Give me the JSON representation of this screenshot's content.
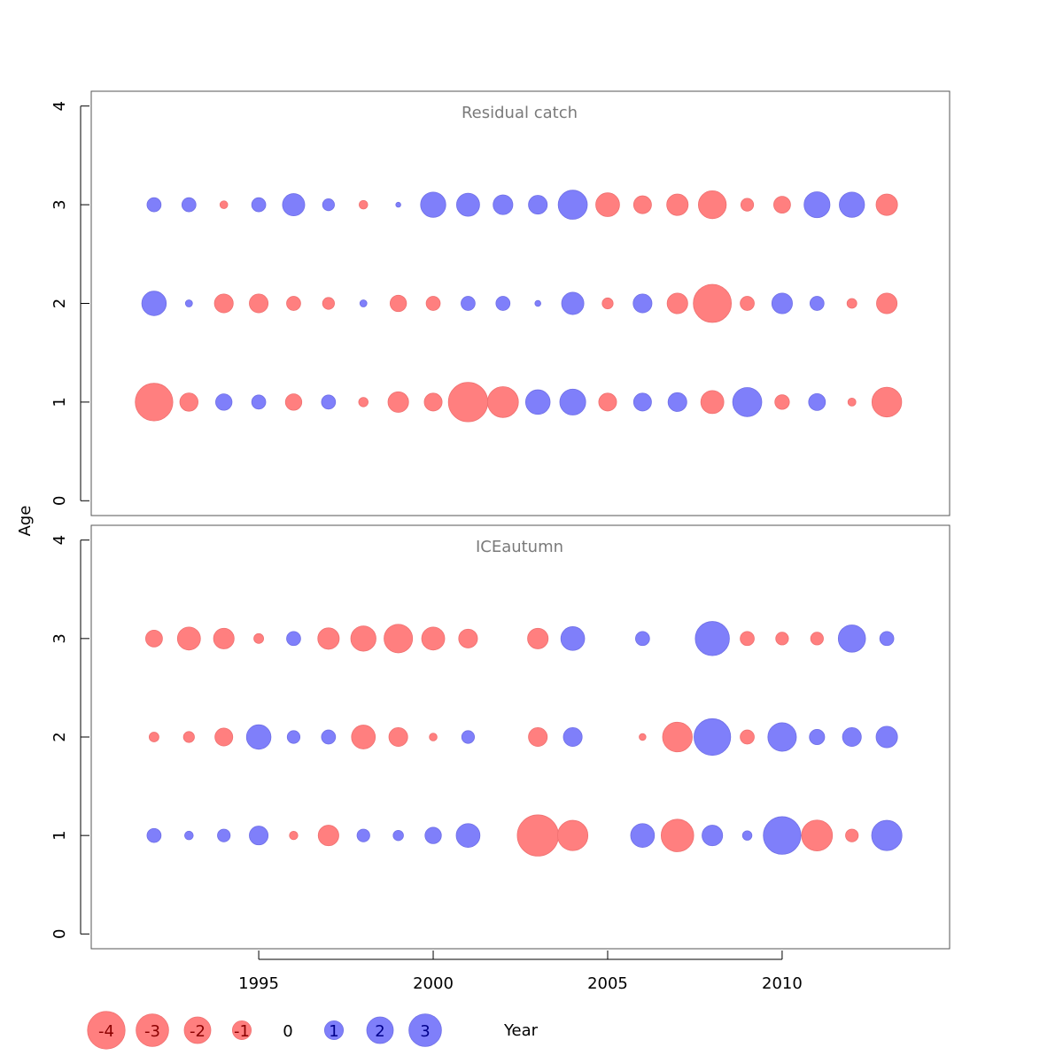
{
  "colors": {
    "positive": "#7f7ffa",
    "negative": "#ff7f7f",
    "panel_title": "#7a7a7a",
    "axis": "#000000"
  },
  "ylabel": "Age",
  "xlabel": "Year",
  "chart_data": [
    {
      "type": "scatter",
      "title": "Residual catch",
      "xlim": [
        1990.2,
        2014.8
      ],
      "ylim": [
        -0.15,
        4.15
      ],
      "yticks": [
        0,
        1,
        2,
        3,
        4
      ],
      "grid": false,
      "ages": [
        1,
        2,
        3
      ],
      "years": [
        1992,
        1993,
        1994,
        1995,
        1996,
        1997,
        1998,
        1999,
        2000,
        2001,
        2002,
        2003,
        2004,
        2005,
        2006,
        2007,
        2008,
        2009,
        2010,
        2011,
        2012,
        2013
      ],
      "residuals": {
        "1": [
          -4.0,
          -0.94,
          0.76,
          0.56,
          -0.76,
          0.56,
          -0.25,
          -1.2,
          -0.9,
          -4.4,
          -2.7,
          1.7,
          1.9,
          -0.9,
          0.9,
          1.0,
          -1.5,
          2.4,
          -0.6,
          0.8,
          -0.18,
          -2.5
        ],
        "2": [
          1.7,
          0.14,
          -1.0,
          -1.0,
          -0.56,
          -0.4,
          0.14,
          -0.76,
          -0.56,
          0.56,
          0.56,
          0.1,
          1.4,
          -0.34,
          1.0,
          -1.2,
          -4.1,
          -0.56,
          1.2,
          0.56,
          -0.27,
          -1.2
        ],
        "3": [
          0.56,
          0.56,
          -0.17,
          0.56,
          1.4,
          0.4,
          -0.21,
          0.07,
          1.8,
          1.5,
          1.1,
          1.0,
          2.4,
          -1.6,
          -0.9,
          -1.3,
          -2.2,
          -0.46,
          -0.8,
          1.9,
          1.8,
          -1.3
        ]
      }
    },
    {
      "type": "scatter",
      "title": "ICEautumn",
      "xlim": [
        1990.2,
        2014.8
      ],
      "ylim": [
        -0.15,
        4.15
      ],
      "yticks": [
        0,
        1,
        2,
        3,
        4
      ],
      "grid": false,
      "ages": [
        1,
        2,
        3
      ],
      "years": [
        1992,
        1993,
        1994,
        1995,
        1996,
        1997,
        1998,
        1999,
        2000,
        2001,
        2002,
        2003,
        2004,
        2005,
        2006,
        2007,
        2008,
        2009,
        2010,
        2011,
        2012,
        2013
      ],
      "residuals": {
        "1": [
          0.56,
          0.21,
          0.46,
          1.0,
          -0.2,
          -1.2,
          0.46,
          0.3,
          0.76,
          1.6,
          null,
          -4.8,
          -2.6,
          null,
          1.6,
          -3.0,
          1.2,
          0.25,
          4.0,
          -2.7,
          -0.46,
          2.6
        ],
        "2": [
          -0.27,
          -0.34,
          -0.9,
          1.7,
          0.46,
          0.56,
          -1.6,
          -1.0,
          -0.17,
          0.46,
          null,
          -1.0,
          1.0,
          null,
          -0.13,
          -2.5,
          3.8,
          -0.56,
          2.3,
          0.66,
          1.0,
          1.3
        ],
        "3": [
          -0.8,
          -1.5,
          -1.2,
          -0.27,
          0.56,
          -1.3,
          -1.8,
          -2.3,
          -1.5,
          -1.0,
          null,
          -1.2,
          1.6,
          null,
          0.56,
          null,
          3.3,
          -0.56,
          -0.46,
          -0.46,
          2.1,
          0.56
        ]
      }
    }
  ],
  "xaxis": {
    "ticks": [
      1995,
      2000,
      2005,
      2010
    ]
  },
  "legend": {
    "placement": "bottom",
    "items": [
      {
        "label": "-4",
        "value": -4
      },
      {
        "label": "-3",
        "value": -3
      },
      {
        "label": "-2",
        "value": -2
      },
      {
        "label": "-1",
        "value": -1
      },
      {
        "label": "0",
        "value": 0
      },
      {
        "label": "1",
        "value": 1
      },
      {
        "label": "2",
        "value": 2
      },
      {
        "label": "3",
        "value": 3
      }
    ]
  }
}
